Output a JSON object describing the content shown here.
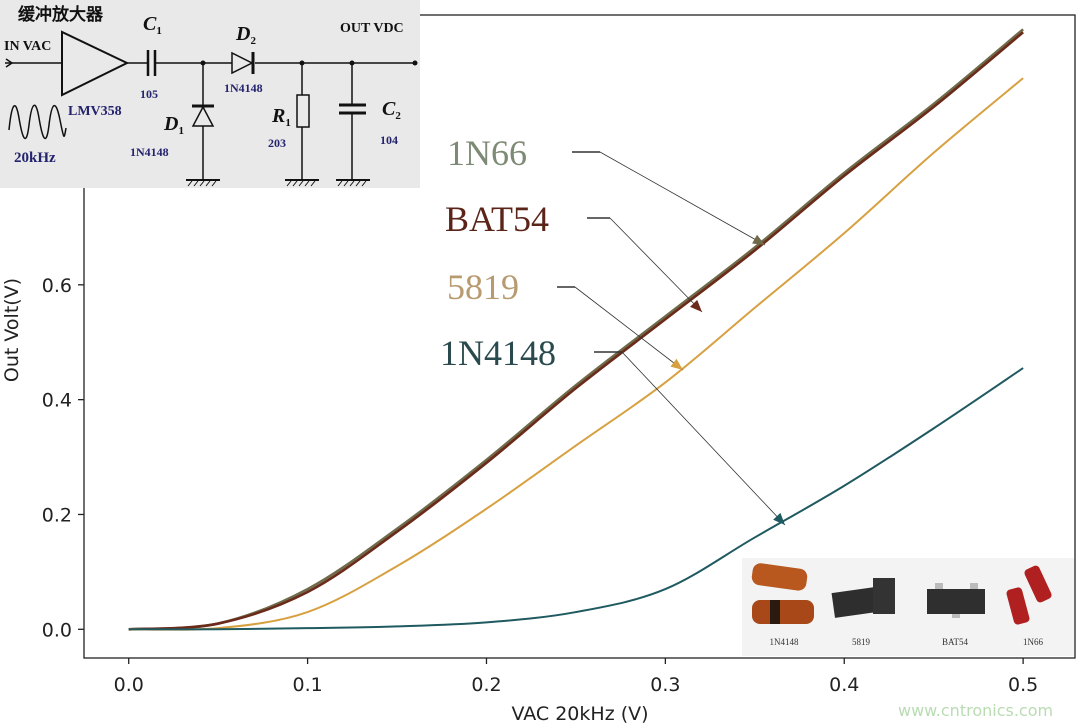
{
  "chart_data": {
    "type": "line",
    "xlabel": "VAC 20kHz (V)",
    "ylabel": "Out Volt(V)",
    "xlim": [
      -0.025,
      0.529
    ],
    "ylim": [
      -0.05,
      1.07
    ],
    "xticks": [
      "0.0",
      "0.1",
      "0.2",
      "0.3",
      "0.4",
      "0.5"
    ],
    "yticks": [
      "0.0",
      "0.2",
      "0.4",
      "0.6"
    ],
    "grid": false,
    "x": [
      0,
      0.05,
      0.1,
      0.15,
      0.2,
      0.25,
      0.3,
      0.35,
      0.4,
      0.45,
      0.5
    ],
    "series": [
      {
        "name": "1N66",
        "color": "#6e6a4a",
        "label_color": "#7d8a76",
        "values": [
          0,
          0.01,
          0.07,
          0.175,
          0.295,
          0.425,
          0.545,
          0.665,
          0.795,
          0.915,
          1.045
        ]
      },
      {
        "name": "BAT54",
        "color": "#6b2a1a",
        "label_color": "#5a2418",
        "values": [
          0,
          0.01,
          0.065,
          0.17,
          0.29,
          0.42,
          0.54,
          0.66,
          0.79,
          0.91,
          1.04
        ]
      },
      {
        "name": "5819",
        "color": "#d7a040",
        "label_color": "#b89a70",
        "values": [
          0,
          0.002,
          0.03,
          0.11,
          0.21,
          0.32,
          0.43,
          0.56,
          0.69,
          0.83,
          0.96
        ]
      },
      {
        "name": "1N4148",
        "color": "#1f5a60",
        "label_color": "#2a4a4e",
        "values": [
          0,
          0,
          0.002,
          0.005,
          0.012,
          0.03,
          0.07,
          0.16,
          0.25,
          0.35,
          0.455
        ]
      }
    ]
  },
  "circuit": {
    "title": "缓冲放大器",
    "input": "IN VAC",
    "output": "OUT VDC",
    "amp": "LMV358",
    "signal": "20kHz",
    "c1": {
      "label": "C",
      "sub": "1",
      "value": "105"
    },
    "d2": {
      "label": "D",
      "sub": "2",
      "value": "1N4148"
    },
    "d1": {
      "label": "D",
      "sub": "1",
      "value": "1N4148"
    },
    "r1": {
      "label": "R",
      "sub": "1",
      "value": "203"
    },
    "c2": {
      "label": "C",
      "sub": "2",
      "value": "104"
    }
  },
  "photos": [
    "1N4148",
    "5819",
    "BAT54",
    "1N66"
  ],
  "watermark": "www.cntronics.com"
}
